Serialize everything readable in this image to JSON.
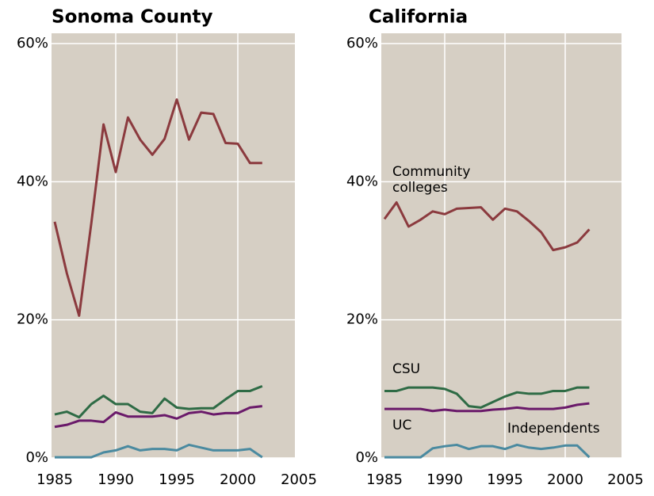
{
  "chart_data": [
    {
      "type": "line",
      "title": "Sonoma County",
      "x": [
        1985,
        1986,
        1987,
        1988,
        1989,
        1990,
        1991,
        1992,
        1993,
        1994,
        1995,
        1996,
        1997,
        1998,
        1999,
        2000,
        2001,
        2002
      ],
      "xlim": [
        1985,
        2005
      ],
      "xticks": [
        1985,
        1990,
        1995,
        2000,
        2005
      ],
      "ylim": [
        0,
        60
      ],
      "yticks": [
        {
          "value": 0,
          "label": "0%"
        },
        {
          "value": 20,
          "label": "20%"
        },
        {
          "value": 40,
          "label": "40%"
        },
        {
          "value": 60,
          "label": "60%"
        }
      ],
      "grid": true,
      "series": [
        {
          "color": "#8b3a3e",
          "values": [
            34.2,
            26.7,
            20.6,
            34,
            48.3,
            41.4,
            49.3,
            46.1,
            43.9,
            46.2,
            51.9,
            46.1,
            50,
            49.8,
            45.6,
            45.5,
            42.7,
            42.7
          ]
        },
        {
          "color": "#2e6b45",
          "values": [
            6.3,
            6.7,
            5.9,
            7.8,
            9.0,
            7.8,
            7.8,
            6.7,
            6.5,
            8.6,
            7.3,
            7.1,
            7.2,
            7.2,
            8.5,
            9.7,
            9.7,
            10.4
          ]
        },
        {
          "color": "#6a1a6a",
          "values": [
            4.5,
            4.8,
            5.4,
            5.4,
            5.2,
            6.6,
            6.0,
            6.0,
            6.0,
            6.2,
            5.7,
            6.5,
            6.7,
            6.3,
            6.5,
            6.5,
            7.3,
            7.5
          ]
        },
        {
          "color": "#4a8aa0",
          "values": [
            0.1,
            0.1,
            0.1,
            0.1,
            0.8,
            1.1,
            1.7,
            1.1,
            1.3,
            1.3,
            1.1,
            1.9,
            1.5,
            1.1,
            1.1,
            1.1,
            1.3,
            0.1
          ]
        }
      ]
    },
    {
      "type": "line",
      "title": "California",
      "x": [
        1985,
        1986,
        1987,
        1988,
        1989,
        1990,
        1991,
        1992,
        1993,
        1994,
        1995,
        1996,
        1997,
        1998,
        1999,
        2000,
        2001,
        2002
      ],
      "xlim": [
        1985,
        2005
      ],
      "xticks": [
        1985,
        1990,
        1995,
        2000,
        2005
      ],
      "ylim": [
        0,
        60
      ],
      "yticks": [
        {
          "value": 0,
          "label": "0%"
        },
        {
          "value": 20,
          "label": "20%"
        },
        {
          "value": 40,
          "label": "40%"
        },
        {
          "value": 60,
          "label": "60%"
        }
      ],
      "grid": true,
      "series": [
        {
          "name": "Community colleges",
          "color": "#8b3a3e",
          "values": [
            34.6,
            37.0,
            33.5,
            34.5,
            35.7,
            35.3,
            36.1,
            36.2,
            36.3,
            34.5,
            36.1,
            35.7,
            34.3,
            32.7,
            30.1,
            30.5,
            31.2,
            33.1
          ]
        },
        {
          "name": "CSU",
          "color": "#2e6b45",
          "values": [
            9.7,
            9.7,
            10.2,
            10.2,
            10.2,
            10.0,
            9.3,
            7.5,
            7.3,
            8.1,
            8.9,
            9.5,
            9.3,
            9.3,
            9.7,
            9.7,
            10.2,
            10.2
          ]
        },
        {
          "name": "UC",
          "color": "#6a1a6a",
          "values": [
            7.1,
            7.1,
            7.1,
            7.1,
            6.8,
            7.0,
            6.8,
            6.8,
            6.8,
            7.0,
            7.1,
            7.3,
            7.1,
            7.1,
            7.1,
            7.3,
            7.7,
            7.9
          ]
        },
        {
          "name": "Independents",
          "color": "#4a8aa0",
          "values": [
            0.1,
            0.1,
            0.1,
            0.1,
            1.4,
            1.7,
            1.9,
            1.3,
            1.7,
            1.7,
            1.3,
            1.9,
            1.5,
            1.3,
            1.5,
            1.8,
            1.8,
            0.1
          ]
        }
      ]
    }
  ]
}
